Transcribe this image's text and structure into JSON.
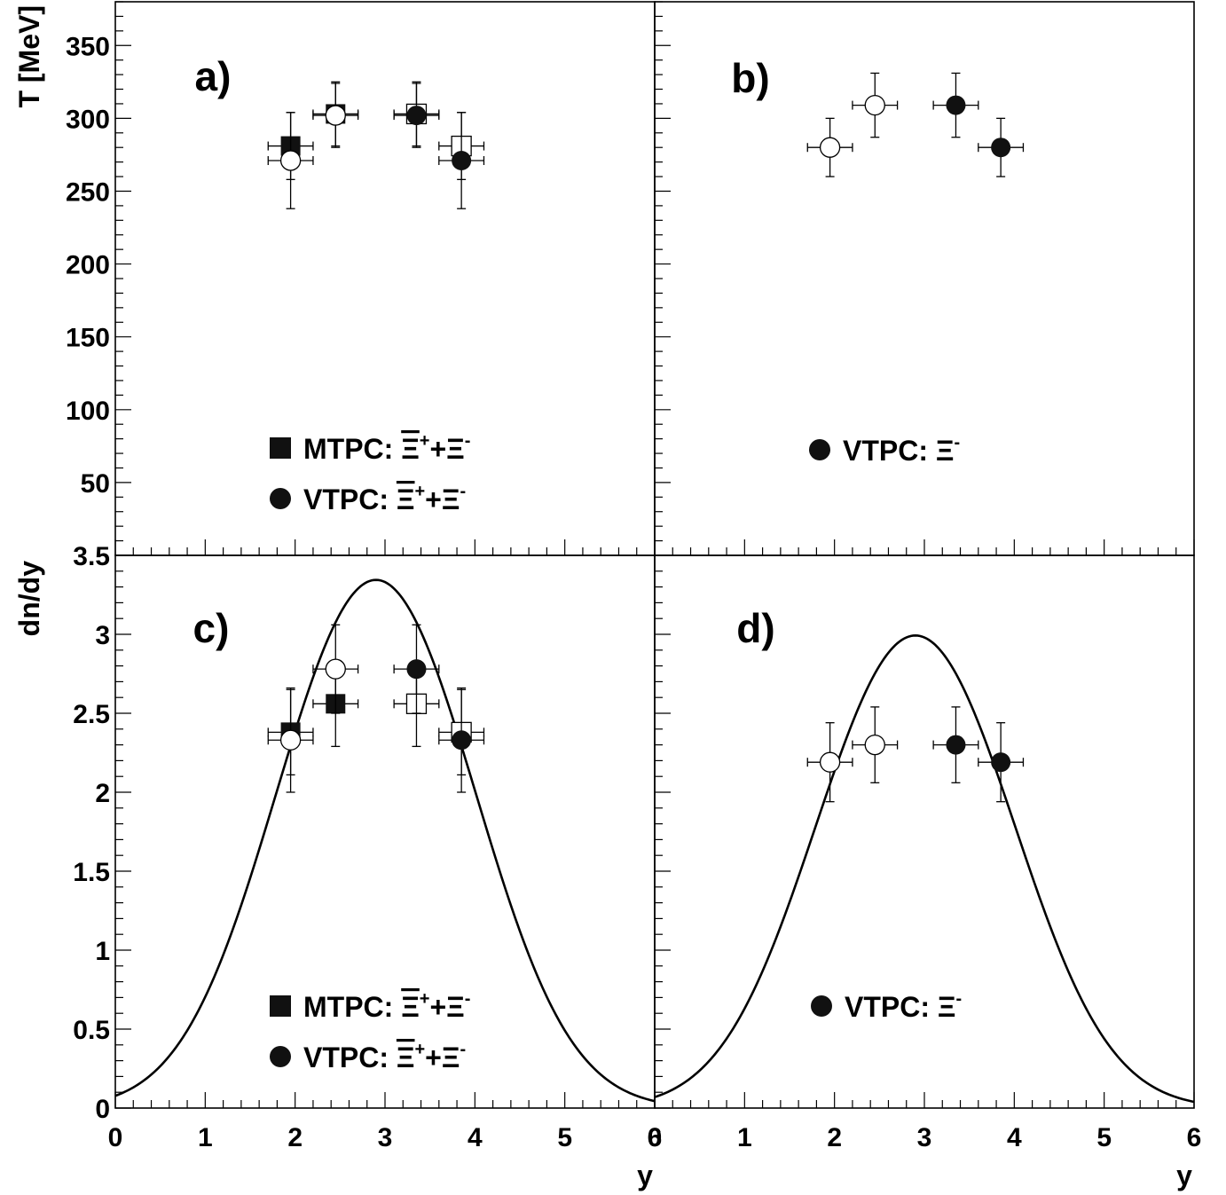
{
  "figure": {
    "x_axis": {
      "label": "y",
      "ticks": [
        "0",
        "1",
        "2",
        "3",
        "4",
        "5",
        "6"
      ],
      "range": [
        0,
        6
      ]
    },
    "top_y_axis": {
      "label": "T [MeV]",
      "ticks": [
        "50",
        "100",
        "150",
        "200",
        "250",
        "300",
        "350"
      ],
      "range": [
        0,
        380
      ]
    },
    "bottom_y_axis": {
      "label": "dn/dy",
      "ticks": [
        "0",
        "0.5",
        "1",
        "1.5",
        "2",
        "2.5",
        "3",
        "3.5"
      ],
      "range": [
        0,
        3.5
      ]
    }
  },
  "chart_data": [
    {
      "panel": "a)",
      "type": "scatter",
      "xlabel": "y",
      "ylabel": "T [MeV]",
      "xlim": [
        0,
        6
      ],
      "ylim": [
        0,
        380
      ],
      "legend": [
        {
          "marker": "filled-square",
          "name": "MTPC:",
          "sym_bar": "Ξ",
          "sym_bar_sup": "+",
          "plus": "+",
          "sym": "Ξ",
          "sym_sup": "-"
        },
        {
          "marker": "filled-circle",
          "name": "VTPC:",
          "sym_bar": "Ξ",
          "sym_bar_sup": "+",
          "plus": "+",
          "sym": "Ξ",
          "sym_sup": "-"
        }
      ],
      "series": [
        {
          "marker": "filled-square",
          "points": [
            {
              "x": 1.95,
              "y": 281,
              "xerr": 0.25,
              "yerr": 23
            },
            {
              "x": 2.45,
              "y": 303,
              "xerr": 0.25,
              "yerr": 22
            }
          ]
        },
        {
          "marker": "open-square",
          "points": [
            {
              "x": 3.35,
              "y": 303,
              "xerr": 0.25,
              "yerr": 22
            },
            {
              "x": 3.85,
              "y": 281,
              "xerr": 0.25,
              "yerr": 23
            }
          ]
        },
        {
          "marker": "filled-circle",
          "points": [
            {
              "x": 3.35,
              "y": 302,
              "xerr": 0.25,
              "yerr": 22
            },
            {
              "x": 3.85,
              "y": 271,
              "xerr": 0.25,
              "yerr": 33
            }
          ]
        },
        {
          "marker": "open-circle",
          "points": [
            {
              "x": 1.95,
              "y": 271,
              "xerr": 0.25,
              "yerr": 33
            },
            {
              "x": 2.45,
              "y": 302,
              "xerr": 0.25,
              "yerr": 22
            }
          ]
        }
      ]
    },
    {
      "panel": "b)",
      "type": "scatter",
      "xlabel": "y",
      "ylabel": "T [MeV]",
      "xlim": [
        0,
        6
      ],
      "ylim": [
        0,
        380
      ],
      "legend": [
        {
          "marker": "filled-circle",
          "name": "VTPC:",
          "sym_bar": "",
          "sym_bar_sup": "",
          "plus": "",
          "sym": "Ξ",
          "sym_sup": "-"
        }
      ],
      "series": [
        {
          "marker": "filled-circle",
          "points": [
            {
              "x": 3.35,
              "y": 309,
              "xerr": 0.25,
              "yerr": 22
            },
            {
              "x": 3.85,
              "y": 280,
              "xerr": 0.25,
              "yerr": 20
            }
          ]
        },
        {
          "marker": "open-circle",
          "points": [
            {
              "x": 1.95,
              "y": 280,
              "xerr": 0.25,
              "yerr": 20
            },
            {
              "x": 2.45,
              "y": 309,
              "xerr": 0.25,
              "yerr": 22
            }
          ]
        }
      ]
    },
    {
      "panel": "c)",
      "type": "scatter",
      "xlabel": "y",
      "ylabel": "dn/dy",
      "xlim": [
        0,
        6
      ],
      "ylim": [
        0,
        3.5
      ],
      "legend": [
        {
          "marker": "filled-square",
          "name": "MTPC:",
          "sym_bar": "Ξ",
          "sym_bar_sup": "+",
          "plus": "+",
          "sym": "Ξ",
          "sym_sup": "-"
        },
        {
          "marker": "filled-circle",
          "name": "VTPC:",
          "sym_bar": "Ξ",
          "sym_bar_sup": "+",
          "plus": "+",
          "sym": "Ξ",
          "sym_sup": "-"
        }
      ],
      "series": [
        {
          "marker": "filled-square",
          "points": [
            {
              "x": 1.95,
              "y": 2.38,
              "xerr": 0.25,
              "yerr": 0.27
            },
            {
              "x": 2.45,
              "y": 2.56,
              "xerr": 0.25,
              "yerr": 0.27
            }
          ]
        },
        {
          "marker": "open-square",
          "points": [
            {
              "x": 3.35,
              "y": 2.56,
              "xerr": 0.25,
              "yerr": 0.27
            },
            {
              "x": 3.85,
              "y": 2.38,
              "xerr": 0.25,
              "yerr": 0.27
            }
          ]
        },
        {
          "marker": "filled-circle",
          "points": [
            {
              "x": 3.35,
              "y": 2.78,
              "xerr": 0.25,
              "yerr": 0.28
            },
            {
              "x": 3.85,
              "y": 2.33,
              "xerr": 0.25,
              "yerr": 0.33
            }
          ]
        },
        {
          "marker": "open-circle",
          "points": [
            {
              "x": 1.95,
              "y": 2.33,
              "xerr": 0.25,
              "yerr": 0.33
            },
            {
              "x": 2.45,
              "y": 2.78,
              "xerr": 0.25,
              "yerr": 0.28
            }
          ]
        }
      ],
      "curve": {
        "type": "double-gaussian",
        "amplitude": 1.9,
        "centers": [
          2.42,
          3.38
        ],
        "sigma": 0.95,
        "peak_y": 3.1
      }
    },
    {
      "panel": "d)",
      "type": "scatter",
      "xlabel": "y",
      "ylabel": "dn/dy",
      "xlim": [
        0,
        6
      ],
      "ylim": [
        0,
        3.5
      ],
      "legend": [
        {
          "marker": "filled-circle",
          "name": "VTPC:",
          "sym_bar": "",
          "sym_bar_sup": "",
          "plus": "",
          "sym": "Ξ",
          "sym_sup": "-"
        }
      ],
      "series": [
        {
          "marker": "filled-circle",
          "points": [
            {
              "x": 3.35,
              "y": 2.3,
              "xerr": 0.25,
              "yerr": 0.24
            },
            {
              "x": 3.85,
              "y": 2.19,
              "xerr": 0.25,
              "yerr": 0.25
            }
          ]
        },
        {
          "marker": "open-circle",
          "points": [
            {
              "x": 1.95,
              "y": 2.19,
              "xerr": 0.25,
              "yerr": 0.25
            },
            {
              "x": 2.45,
              "y": 2.3,
              "xerr": 0.25,
              "yerr": 0.24
            }
          ]
        }
      ],
      "curve": {
        "type": "double-gaussian",
        "amplitude": 1.7,
        "centers": [
          2.42,
          3.38
        ],
        "sigma": 0.95,
        "peak_y": 2.76
      }
    }
  ]
}
